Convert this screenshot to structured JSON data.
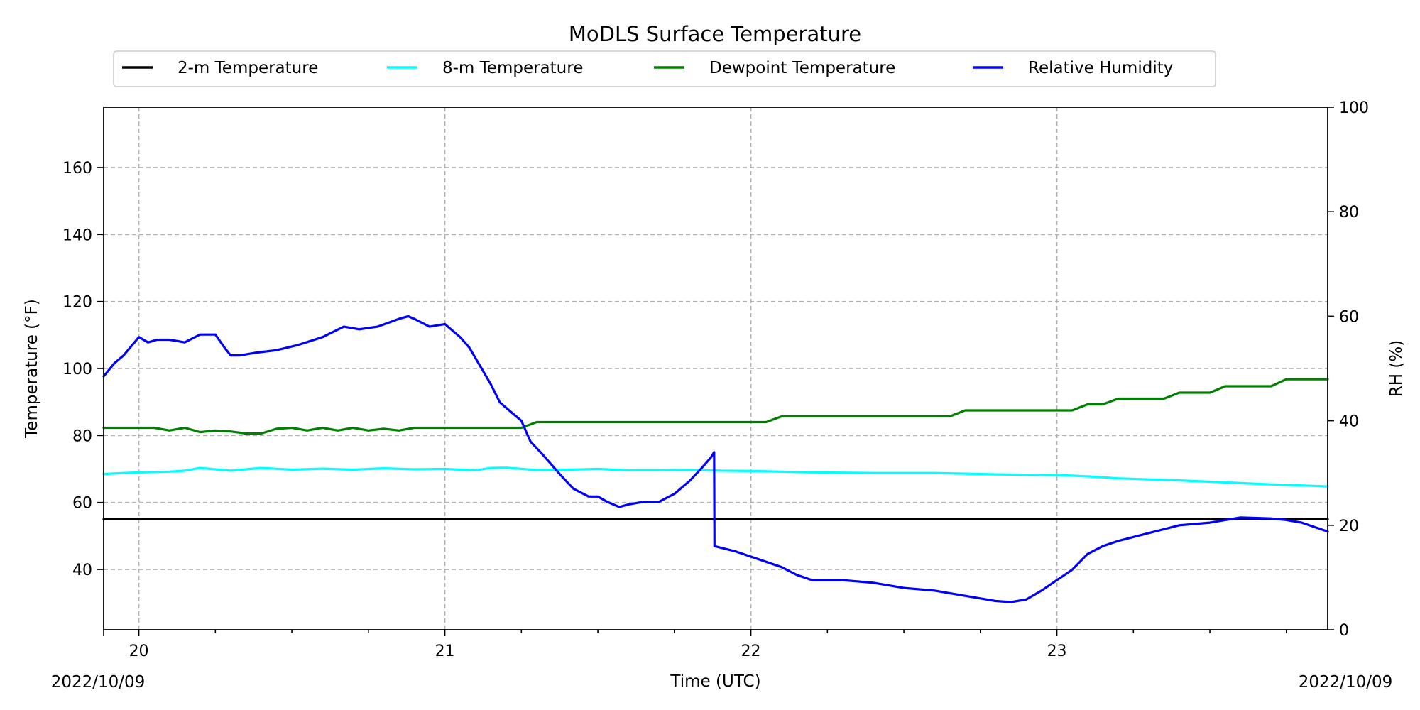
{
  "chart_data": {
    "type": "line",
    "title": "MoDLS Surface Temperature",
    "xlabel": "Time (UTC)",
    "ylabel_left": "Temperature ($^\\circ$F)",
    "ylabel_left_display": "Temperature (°F)",
    "ylabel_right": "RH (%)",
    "x_corner_left": "2022/10/09",
    "x_corner_right": "2022/10/09",
    "x_tick_labels": [
      "20",
      "21",
      "22",
      "23"
    ],
    "x_ticks": [
      20,
      21,
      22,
      23
    ],
    "xlim": [
      19.885,
      23.885
    ],
    "ylim_left": [
      22,
      178
    ],
    "ylim_right": [
      0,
      100
    ],
    "y_left_ticks": [
      40,
      60,
      80,
      100,
      120,
      140,
      160
    ],
    "y_right_ticks": [
      0,
      20,
      40,
      60,
      80,
      100
    ],
    "grid": true,
    "legend_position": "top-center",
    "series": [
      {
        "name": "2-m Temperature",
        "color": "#000000",
        "axis": "left",
        "x": [
          19.885,
          20.5,
          21.0,
          21.5,
          22.0,
          22.5,
          23.0,
          23.5,
          23.885
        ],
        "y": [
          55,
          55,
          55,
          55,
          55,
          55,
          55,
          55,
          55
        ]
      },
      {
        "name": "8-m Temperature",
        "color": "#00ffff",
        "axis": "left",
        "x": [
          19.885,
          19.95,
          20.0,
          20.1,
          20.15,
          20.2,
          20.3,
          20.4,
          20.5,
          20.6,
          20.7,
          20.8,
          20.9,
          21.0,
          21.1,
          21.15,
          21.2,
          21.3,
          21.4,
          21.5,
          21.6,
          21.7,
          21.8,
          21.9,
          22.0,
          22.1,
          22.2,
          22.3,
          22.4,
          22.5,
          22.6,
          22.7,
          22.8,
          22.9,
          23.0,
          23.1,
          23.2,
          23.3,
          23.4,
          23.5,
          23.6,
          23.7,
          23.8,
          23.885
        ],
        "y": [
          68.5,
          68.8,
          69.0,
          69.2,
          69.5,
          70.3,
          69.5,
          70.3,
          69.8,
          70.1,
          69.8,
          70.2,
          69.9,
          70.0,
          69.6,
          70.3,
          70.4,
          69.7,
          69.8,
          70.0,
          69.6,
          69.6,
          69.7,
          69.5,
          69.4,
          69.2,
          69.0,
          68.9,
          68.8,
          68.8,
          68.8,
          68.6,
          68.4,
          68.3,
          68.2,
          67.8,
          67.2,
          66.9,
          66.6,
          66.2,
          65.8,
          65.4,
          65.1,
          64.8
        ]
      },
      {
        "name": "Dewpoint Temperature",
        "color": "#008000",
        "axis": "left",
        "x": [
          19.885,
          19.95,
          20.0,
          20.05,
          20.1,
          20.15,
          20.2,
          20.25,
          20.3,
          20.35,
          20.4,
          20.45,
          20.5,
          20.55,
          20.6,
          20.65,
          20.7,
          20.75,
          20.8,
          20.85,
          20.9,
          20.95,
          21.0,
          21.05,
          21.1,
          21.15,
          21.2,
          21.25,
          21.3,
          21.4,
          21.5,
          21.6,
          21.7,
          21.8,
          21.9,
          22.0,
          22.05,
          22.1,
          22.2,
          22.3,
          22.4,
          22.5,
          22.6,
          22.65,
          22.7,
          22.8,
          22.9,
          23.0,
          23.05,
          23.1,
          23.15,
          23.2,
          23.3,
          23.35,
          23.4,
          23.5,
          23.55,
          23.6,
          23.7,
          23.75,
          23.8,
          23.885
        ],
        "y": [
          82.3,
          82.3,
          82.3,
          82.3,
          81.5,
          82.3,
          81.0,
          81.5,
          81.2,
          80.6,
          80.6,
          82.0,
          82.3,
          81.5,
          82.3,
          81.5,
          82.3,
          81.5,
          82.0,
          81.5,
          82.3,
          82.3,
          82.3,
          82.3,
          82.3,
          82.3,
          82.3,
          82.3,
          84.0,
          84.0,
          84.0,
          84.0,
          84.0,
          84.0,
          84.0,
          84.0,
          84.0,
          85.7,
          85.7,
          85.7,
          85.7,
          85.7,
          85.7,
          85.7,
          87.5,
          87.5,
          87.5,
          87.5,
          87.5,
          89.3,
          89.3,
          91.0,
          91.0,
          91.0,
          92.8,
          92.8,
          94.7,
          94.7,
          94.7,
          96.8,
          96.8,
          96.8
        ]
      },
      {
        "name": "Relative Humidity",
        "color": "#0000ff",
        "axis": "right",
        "x": [
          19.885,
          19.92,
          19.95,
          20.0,
          20.03,
          20.06,
          20.1,
          20.15,
          20.2,
          20.25,
          20.28,
          20.3,
          20.33,
          20.38,
          20.45,
          20.52,
          20.6,
          20.67,
          20.72,
          20.78,
          20.85,
          20.88,
          20.9,
          20.95,
          21.0,
          21.05,
          21.08,
          21.12,
          21.15,
          21.18,
          21.22,
          21.25,
          21.28,
          21.32,
          21.35,
          21.38,
          21.42,
          21.47,
          21.5,
          21.53,
          21.57,
          21.6,
          21.65,
          21.7,
          21.75,
          21.8,
          21.84,
          21.87,
          21.88,
          21.881,
          21.95,
          22.0,
          22.05,
          22.1,
          22.15,
          22.2,
          22.3,
          22.4,
          22.5,
          22.6,
          22.7,
          22.8,
          22.85,
          22.9,
          22.95,
          23.0,
          23.05,
          23.1,
          23.15,
          23.2,
          23.3,
          23.4,
          23.5,
          23.6,
          23.7,
          23.75,
          23.8,
          23.85,
          23.885
        ],
        "y": [
          48.5,
          51.0,
          52.5,
          56.0,
          55.0,
          55.5,
          55.5,
          55.0,
          56.5,
          56.5,
          54.0,
          52.5,
          52.5,
          53.0,
          53.5,
          54.5,
          56.0,
          58.0,
          57.5,
          58.0,
          59.5,
          60.0,
          59.5,
          58.0,
          58.5,
          56.0,
          54.0,
          50.0,
          47.0,
          43.5,
          41.5,
          40.0,
          36.0,
          33.5,
          31.5,
          29.5,
          27.0,
          25.5,
          25.5,
          24.5,
          23.5,
          24.0,
          24.5,
          24.5,
          26.0,
          28.5,
          31.0,
          33.0,
          34.0,
          16.0,
          15.0,
          14.0,
          13.0,
          12.0,
          10.5,
          9.5,
          9.5,
          9.0,
          8.0,
          7.5,
          6.5,
          5.5,
          5.3,
          5.8,
          7.5,
          9.5,
          11.5,
          14.5,
          16.0,
          17.0,
          18.5,
          20.0,
          20.5,
          21.5,
          21.3,
          21.0,
          20.5,
          19.5,
          18.8
        ]
      }
    ]
  }
}
